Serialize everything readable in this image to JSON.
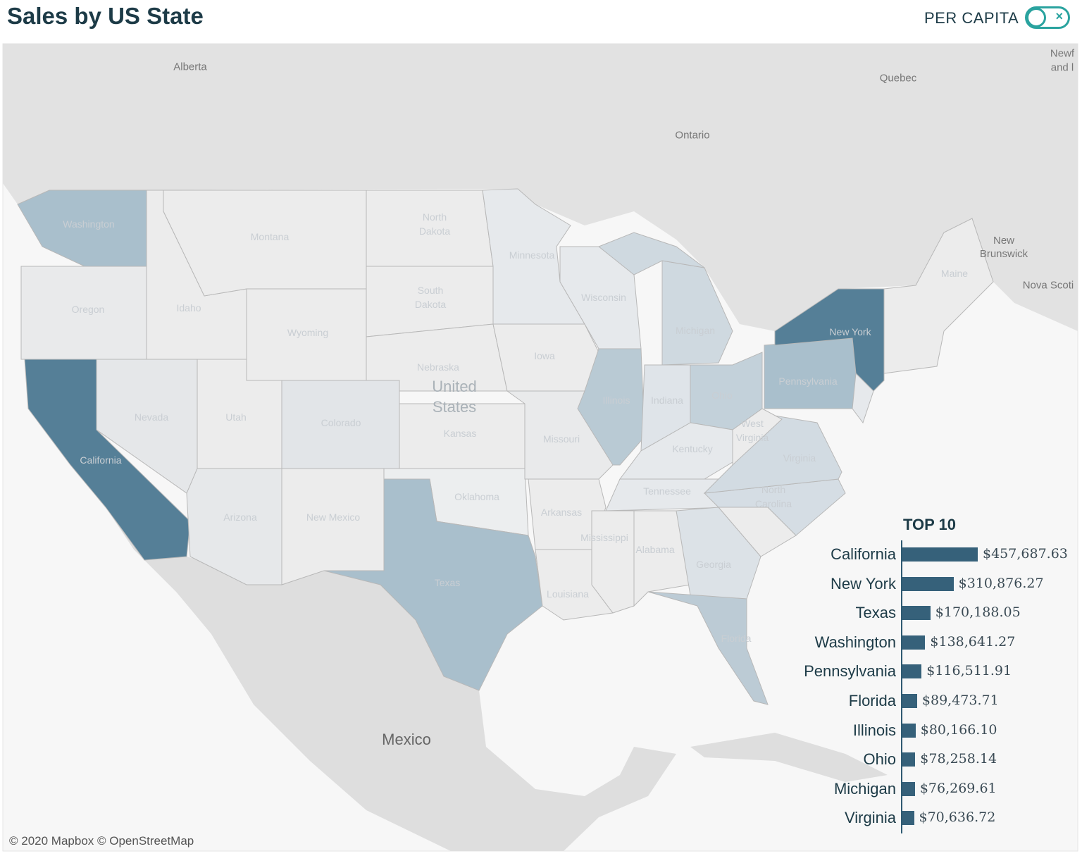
{
  "header": {
    "title": "Sales by US State",
    "toggle_label": "PER CAPITA",
    "toggle_state": "off",
    "toggle_icon": "x-icon"
  },
  "colors": {
    "high": "#557f97",
    "mid": "#a9bfcc",
    "low": "#e9eaeb",
    "bar": "#36617a",
    "toggle": "#2aa39f"
  },
  "map": {
    "regions": [
      "Alberta",
      "Quebec",
      "Ontario",
      "New Brunswick",
      "Nova Scoti",
      "Newf",
      "and l"
    ],
    "country_us": [
      "United",
      "States"
    ],
    "country_mexico": "Mexico",
    "states": [
      "Washington",
      "Oregon",
      "California",
      "Nevada",
      "Idaho",
      "Montana",
      "Wyoming",
      "Utah",
      "Colorado",
      "Arizona",
      "New Mexico",
      "North",
      "Dakota",
      "South",
      "Dakota",
      "Nebraska",
      "Kansas",
      "Oklahoma",
      "Texas",
      "Minnesota",
      "Iowa",
      "Missouri",
      "Arkansas",
      "Louisiana",
      "Wisconsin",
      "Illinois",
      "Michigan",
      "Indiana",
      "Ohio",
      "Kentucky",
      "Tennessee",
      "Mississippi",
      "Alabama",
      "Georgia",
      "Florida",
      "North",
      "Carolina",
      "Virginia",
      "West",
      "Virginia",
      "Pennsylvania",
      "New York",
      "Maine"
    ],
    "attribution": "© 2020 Mapbox © OpenStreetMap"
  },
  "chart_data": {
    "type": "bar",
    "title": "TOP 10",
    "categories": [
      "California",
      "New York",
      "Texas",
      "Washington",
      "Pennsylvania",
      "Florida",
      "Illinois",
      "Ohio",
      "Michigan",
      "Virginia"
    ],
    "values": [
      457687.63,
      310876.27,
      170188.05,
      138641.27,
      116511.91,
      89473.71,
      80166.1,
      78258.14,
      76269.61,
      70636.72
    ],
    "labels": [
      "$457,687.63",
      "$310,876.27",
      "$170,188.05",
      "$138,641.27",
      "$116,511.91",
      "$89,473.71",
      "$80,166.10",
      "$78,258.14",
      "$76,269.61",
      "$70,636.72"
    ]
  }
}
